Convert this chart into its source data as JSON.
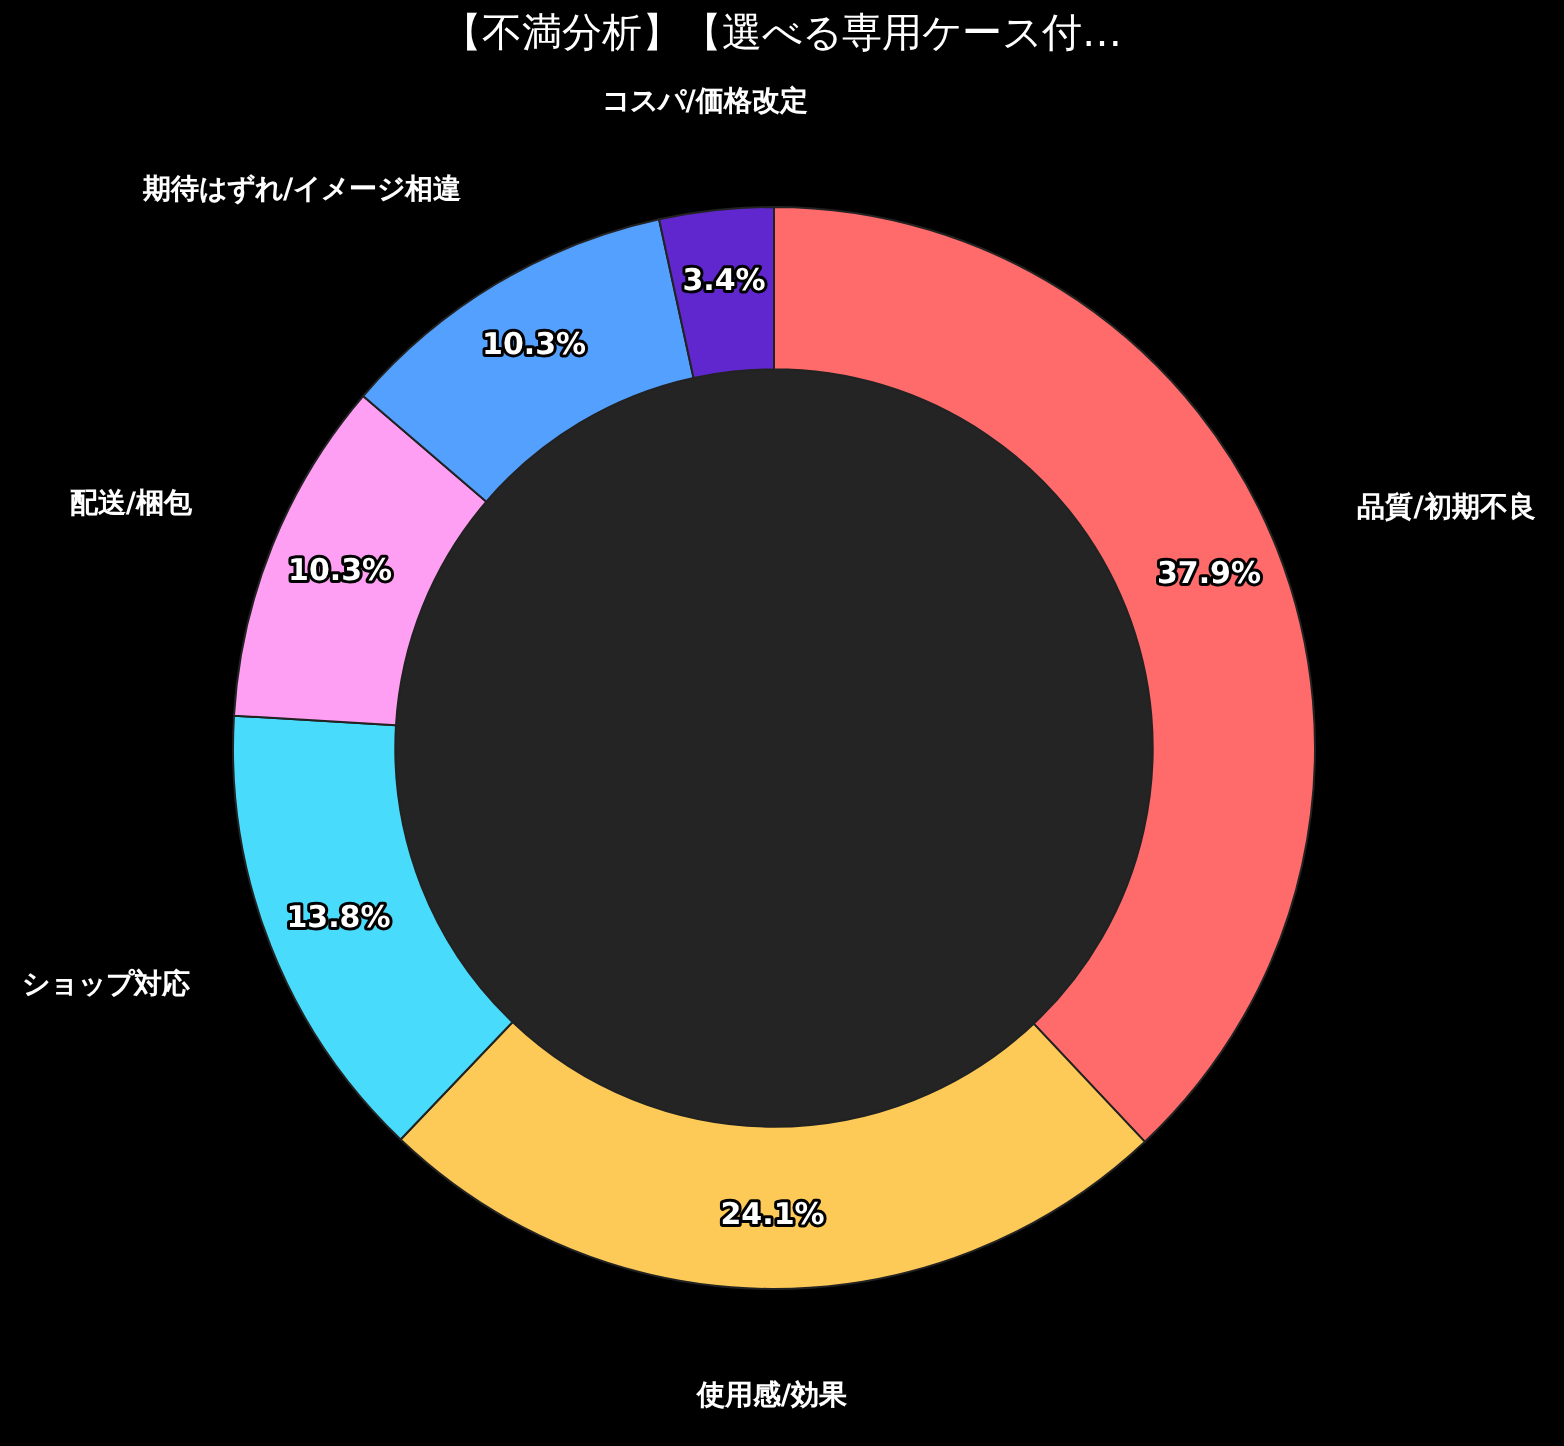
{
  "chart_data": {
    "type": "donut",
    "title": "【不満分析】【選べる専用ケース付…",
    "categories": [
      "品質/初期不良",
      "使用感/効果",
      "ショップ対応",
      "配送/梱包",
      "期待はずれ/イメージ相違",
      "コスパ/価格改定"
    ],
    "values": [
      37.9,
      24.1,
      13.8,
      10.3,
      10.3,
      3.4
    ],
    "value_labels": [
      "37.9%",
      "24.1%",
      "13.8%",
      "10.3%",
      "10.3%",
      "3.4%"
    ],
    "colors": [
      "#ff6b6b",
      "#feca57",
      "#48dbfb",
      "#ff9ff3",
      "#54a0ff",
      "#5f27cd"
    ],
    "legend": false
  }
}
